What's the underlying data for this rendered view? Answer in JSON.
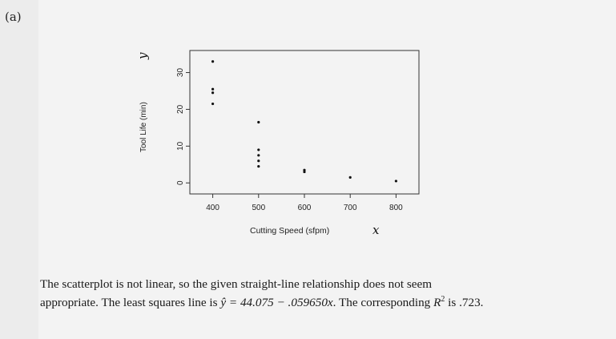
{
  "part_label": "(a)",
  "chart_data": {
    "type": "scatter",
    "xlabel": "Cutting Speed (sfpm)",
    "ylabel": "Tool Life (min)",
    "xlabel_handwritten": "x",
    "ylabel_handwritten": "y",
    "xticks": [
      400,
      500,
      600,
      700,
      800
    ],
    "yticks": [
      0,
      10,
      20,
      30
    ],
    "xlim": [
      350,
      850
    ],
    "ylim": [
      -3,
      36
    ],
    "grid": false,
    "points": [
      {
        "x": 400,
        "y": 33
      },
      {
        "x": 400,
        "y": 25.5
      },
      {
        "x": 400,
        "y": 24.5
      },
      {
        "x": 400,
        "y": 21.5
      },
      {
        "x": 500,
        "y": 16.5
      },
      {
        "x": 500,
        "y": 9
      },
      {
        "x": 500,
        "y": 7.5
      },
      {
        "x": 500,
        "y": 6
      },
      {
        "x": 500,
        "y": 4.5
      },
      {
        "x": 600,
        "y": 3.5
      },
      {
        "x": 600,
        "y": 3
      },
      {
        "x": 700,
        "y": 1.5
      },
      {
        "x": 800,
        "y": 0.5
      }
    ]
  },
  "answer": {
    "line1": "The scatterplot is not linear, so the given straight-line relationship does not seem",
    "line2_part1": "appropriate. The least squares line is ",
    "equation": "ŷ = 44.075 − .059650x",
    "line2_part2": ". The corresponding ",
    "rsq_symbol": "R",
    "rsq_exp": "2",
    "line2_part3": " is .723."
  }
}
